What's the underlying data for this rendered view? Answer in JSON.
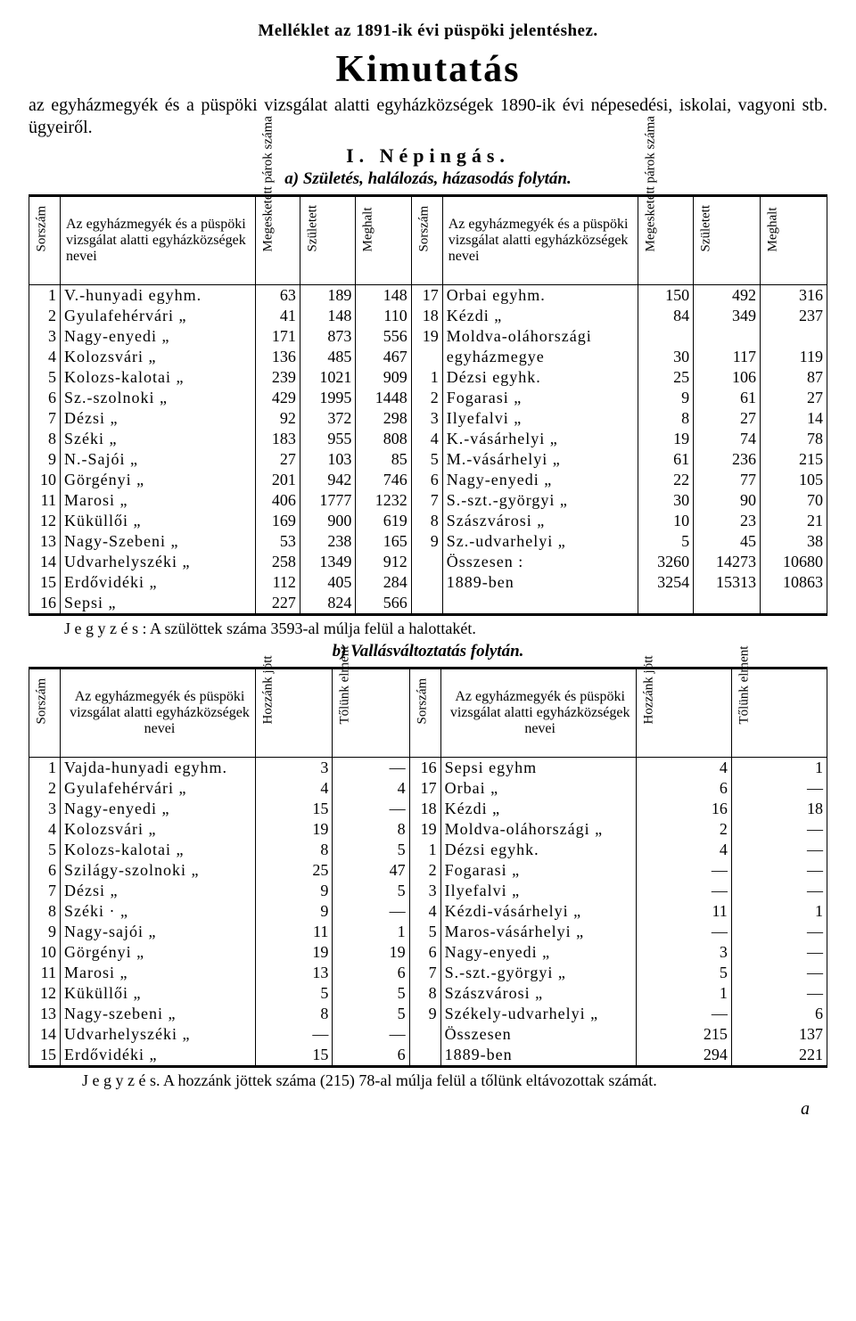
{
  "header": {
    "topline": "Melléklet az 1891-ik évi püspöki jelentéshez.",
    "title": "Kimutatás",
    "intro": "az egyházmegyék és a püspöki vizsgálat alatti egyházközségek 1890-ik évi népesedési, iskolai, vagyoni stb. ügyeiről.",
    "section": "I. Népingás.",
    "sub_a": "a) Születés, halálozás, házasodás folytán.",
    "sub_b": "b) Vallásváltoztatás folytán."
  },
  "tableA": {
    "headers": {
      "sorszam": "Sorszám",
      "name": "Az egyházmegyék és a püspöki vizsgálat alatti egyházközségek nevei",
      "parok": "Megesketett párok száma",
      "szul": "Született",
      "megh": "Meghalt"
    },
    "left": [
      {
        "n": "1",
        "name": "V.-hunyadi egyhm.",
        "p": "63",
        "s": "189",
        "m": "148"
      },
      {
        "n": "2",
        "name": "Gyulafehérvári „",
        "p": "41",
        "s": "148",
        "m": "110"
      },
      {
        "n": "3",
        "name": "Nagy-enyedi     „",
        "p": "171",
        "s": "873",
        "m": "556"
      },
      {
        "n": "4",
        "name": "Kolozsvári      „",
        "p": "136",
        "s": "485",
        "m": "467"
      },
      {
        "n": "5",
        "name": "Kolozs-kalotai  „",
        "p": "239",
        "s": "1021",
        "m": "909"
      },
      {
        "n": "6",
        "name": "Sz.-szolnoki    „",
        "p": "429",
        "s": "1995",
        "m": "1448"
      },
      {
        "n": "7",
        "name": "Dézsi           „",
        "p": "92",
        "s": "372",
        "m": "298"
      },
      {
        "n": "8",
        "name": "Széki           „",
        "p": "183",
        "s": "955",
        "m": "808"
      },
      {
        "n": "9",
        "name": "N.-Sajói        „",
        "p": "27",
        "s": "103",
        "m": "85"
      },
      {
        "n": "10",
        "name": "Görgényi        „",
        "p": "201",
        "s": "942",
        "m": "746"
      },
      {
        "n": "11",
        "name": "Marosi          „",
        "p": "406",
        "s": "1777",
        "m": "1232"
      },
      {
        "n": "12",
        "name": "Küküllői        „",
        "p": "169",
        "s": "900",
        "m": "619"
      },
      {
        "n": "13",
        "name": "Nagy-Szebeni    „",
        "p": "53",
        "s": "238",
        "m": "165"
      },
      {
        "n": "14",
        "name": "Udvarhelyszéki  „",
        "p": "258",
        "s": "1349",
        "m": "912"
      },
      {
        "n": "15",
        "name": "Erdővidéki      „",
        "p": "112",
        "s": "405",
        "m": "284"
      },
      {
        "n": "16",
        "name": "Sepsi           „",
        "p": "227",
        "s": "824",
        "m": "566"
      }
    ],
    "right": [
      {
        "n": "17",
        "name": "Orbai      egyhm.",
        "p": "150",
        "s": "492",
        "m": "316"
      },
      {
        "n": "18",
        "name": "Kézdi          „",
        "p": "84",
        "s": "349",
        "m": "237"
      },
      {
        "n": "19",
        "name": "Moldva-oláhországi",
        "p": "",
        "s": "",
        "m": ""
      },
      {
        "n": "",
        "name": "      egyházmegye",
        "p": "30",
        "s": "117",
        "m": "119"
      },
      {
        "n": "1",
        "name": "Dézsi     egyhk.",
        "p": "25",
        "s": "106",
        "m": "87"
      },
      {
        "n": "2",
        "name": "Fogarasi       „",
        "p": "9",
        "s": "61",
        "m": "27"
      },
      {
        "n": "3",
        "name": "Ilyefalvi      „",
        "p": "8",
        "s": "27",
        "m": "14"
      },
      {
        "n": "4",
        "name": "K.-vásárhelyi  „",
        "p": "19",
        "s": "74",
        "m": "78"
      },
      {
        "n": "5",
        "name": "M.-vásárhelyi  „",
        "p": "61",
        "s": "236",
        "m": "215"
      },
      {
        "n": "6",
        "name": "Nagy-enyedi    „",
        "p": "22",
        "s": "77",
        "m": "105"
      },
      {
        "n": "7",
        "name": "S.-szt.-györgyi „",
        "p": "30",
        "s": "90",
        "m": "70"
      },
      {
        "n": "8",
        "name": "Szászvárosi    „",
        "p": "10",
        "s": "23",
        "m": "21"
      },
      {
        "n": "9",
        "name": "Sz.-udvarhelyi „",
        "p": "5",
        "s": "45",
        "m": "38"
      },
      {
        "n": "",
        "name": "     Összesen :",
        "p": "3260",
        "s": "14273",
        "m": "10680"
      },
      {
        "n": "",
        "name": "     1889-ben",
        "p": "3254",
        "s": "15313",
        "m": "10863"
      },
      {
        "n": "",
        "name": "",
        "p": "",
        "s": "",
        "m": ""
      }
    ],
    "note": "J e g y z é s :  A szülöttek száma 3593-al múlja felül a halottakét."
  },
  "tableB": {
    "headers": {
      "sorszam": "Sorszám",
      "name": "Az egyházmegyék és püspöki vizsgálat alatti egyházközségek nevei",
      "hozjott": "Hozzánk jött",
      "tolunk": "Tőlünk elment"
    },
    "left": [
      {
        "n": "1",
        "name": "Vajda-hunyadi  egyhm.",
        "h": "3",
        "t": "—"
      },
      {
        "n": "2",
        "name": "Gyulafehérvári     „",
        "h": "4",
        "t": "4"
      },
      {
        "n": "3",
        "name": "Nagy-enyedi        „",
        "h": "15",
        "t": "—"
      },
      {
        "n": "4",
        "name": "Kolozsvári         „",
        "h": "19",
        "t": "8"
      },
      {
        "n": "5",
        "name": "Kolozs-kalotai     „",
        "h": "8",
        "t": "5"
      },
      {
        "n": "6",
        "name": "Szilágy-szolnoki   „",
        "h": "25",
        "t": "47"
      },
      {
        "n": "7",
        "name": "Dézsi              „",
        "h": "9",
        "t": "5"
      },
      {
        "n": "8",
        "name": "Széki       ·      „",
        "h": "9",
        "t": "—"
      },
      {
        "n": "9",
        "name": "Nagy-sajói         „",
        "h": "11",
        "t": "1"
      },
      {
        "n": "10",
        "name": "Görgényi           „",
        "h": "19",
        "t": "19"
      },
      {
        "n": "11",
        "name": "Marosi             „",
        "h": "13",
        "t": "6"
      },
      {
        "n": "12",
        "name": "Küküllői           „",
        "h": "5",
        "t": "5"
      },
      {
        "n": "13",
        "name": "Nagy-szebeni       „",
        "h": "8",
        "t": "5"
      },
      {
        "n": "14",
        "name": "Udvarhelyszéki     „",
        "h": "—",
        "t": "—"
      },
      {
        "n": "15",
        "name": "Erdővidéki         „",
        "h": "15",
        "t": "6"
      }
    ],
    "right": [
      {
        "n": "16",
        "name": "Sepsi          egyhm",
        "h": "4",
        "t": "1"
      },
      {
        "n": "17",
        "name": "Orbai              „",
        "h": "6",
        "t": "—"
      },
      {
        "n": "18",
        "name": "Kézdi              „",
        "h": "16",
        "t": "18"
      },
      {
        "n": "19",
        "name": "Moldva-oláhországi „",
        "h": "2",
        "t": "—"
      },
      {
        "n": "1",
        "name": "Dézsi         egyhk.",
        "h": "4",
        "t": "—"
      },
      {
        "n": "2",
        "name": "Fogarasi           „",
        "h": "—",
        "t": "—"
      },
      {
        "n": "3",
        "name": "Ilyefalvi          „",
        "h": "—",
        "t": "—"
      },
      {
        "n": "4",
        "name": "Kézdi-vásárhelyi   „",
        "h": "11",
        "t": "1"
      },
      {
        "n": "5",
        "name": "Maros-vásárhelyi   „",
        "h": "—",
        "t": "—"
      },
      {
        "n": "6",
        "name": "Nagy-enyedi        „",
        "h": "3",
        "t": "—"
      },
      {
        "n": "7",
        "name": "S.-szt.-györgyi    „",
        "h": "5",
        "t": "—"
      },
      {
        "n": "8",
        "name": "Szászvárosi        „",
        "h": "1",
        "t": "—"
      },
      {
        "n": "9",
        "name": "Székely-udvarhelyi „",
        "h": "—",
        "t": "6"
      },
      {
        "n": "",
        "name": "         Összesen",
        "h": "215",
        "t": "137"
      },
      {
        "n": "",
        "name": "         1889-ben",
        "h": "294",
        "t": "221"
      }
    ],
    "note": "J e g y z é s.  A hozzánk jöttek száma (215) 78-al múlja felül a tőlünk eltávozottak számát.",
    "footer": "a"
  }
}
